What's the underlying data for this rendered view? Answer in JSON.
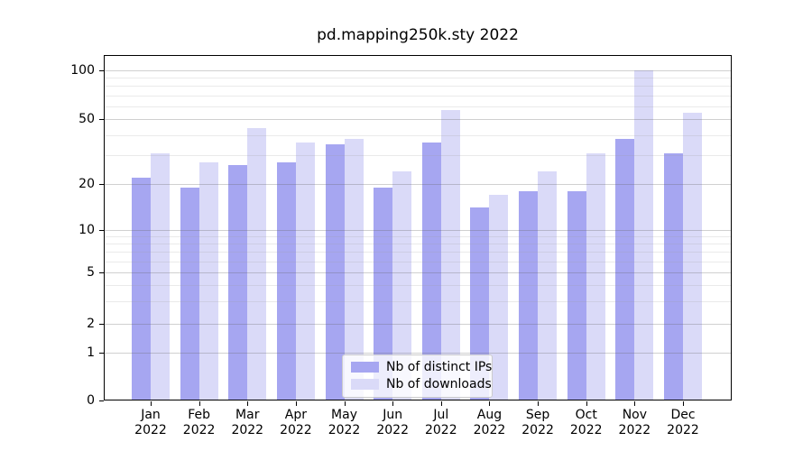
{
  "title": "pd.mapping250k.sty 2022",
  "colors": {
    "ips_bar": "#a6a6f1",
    "downloads_bar": "#dadaf8",
    "axis": "#000000",
    "grid_major": "#c9c9c9",
    "grid_minor": "#e7e7e7"
  },
  "legend": {
    "items": [
      {
        "key": "ips",
        "label": "Nb of distinct IPs",
        "swatch": "#a6a6f1"
      },
      {
        "key": "downloads",
        "label": "Nb of downloads",
        "swatch": "#dadaf8"
      }
    ]
  },
  "chart_data": {
    "type": "bar",
    "title": "pd.mapping250k.sty 2022",
    "categories": [
      "Jan 2022",
      "Feb 2022",
      "Mar 2022",
      "Apr 2022",
      "May 2022",
      "Jun 2022",
      "Jul 2022",
      "Aug 2022",
      "Sep 2022",
      "Oct 2022",
      "Nov 2022",
      "Dec 2022"
    ],
    "series": [
      {
        "name": "Nb of distinct IPs",
        "color": "#a6a6f1",
        "values": [
          22,
          19,
          26,
          27,
          35,
          19,
          36,
          14,
          18,
          18,
          38,
          31
        ]
      },
      {
        "name": "Nb of downloads",
        "color": "#dadaf8",
        "values": [
          31,
          27,
          44,
          36,
          38,
          24,
          57,
          17,
          24,
          31,
          100,
          55
        ]
      }
    ],
    "xlabel": "",
    "ylabel": "",
    "yscale": "log-like with 0 baseline",
    "yticks": [
      0,
      1,
      2,
      5,
      10,
      20,
      50,
      100
    ],
    "yticks_minor": [
      3,
      4,
      6,
      7,
      8,
      9,
      30,
      40,
      60,
      70,
      80,
      90
    ],
    "ylim": [
      0,
      110
    ],
    "grid": "both",
    "legend_position": "lower center"
  }
}
